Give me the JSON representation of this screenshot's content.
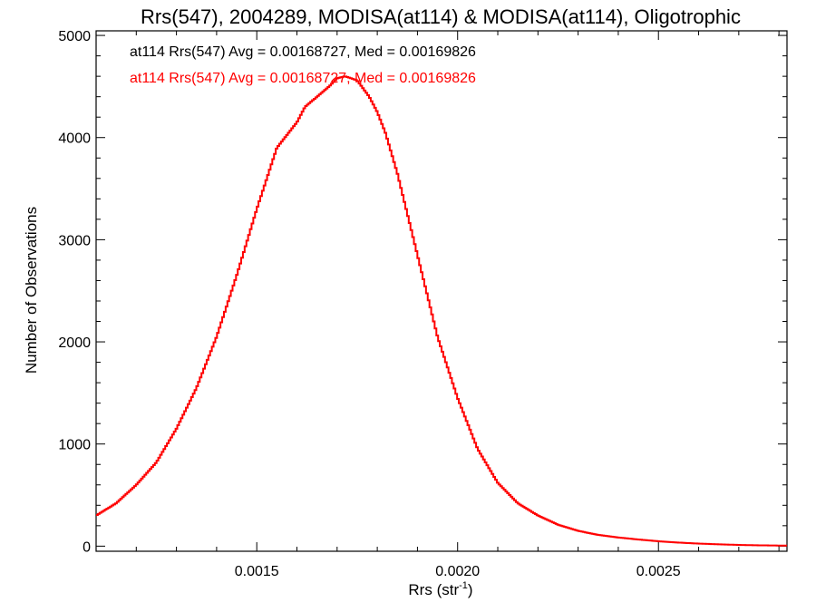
{
  "chart_data": {
    "type": "histogram",
    "title": "Rrs(547), 2004289, MODISA(at114) & MODISA(at114), Oligotrophic",
    "xlabel": "Rrs (str",
    "xlabel_sup": "-1",
    "xlabel_end": ")",
    "ylabel": "Number of Observations",
    "xlim": [
      0.0011,
      0.00282
    ],
    "ylim": [
      0,
      5000
    ],
    "x_ticks": [
      0.0015,
      0.002,
      0.0025
    ],
    "x_tick_labels": [
      "0.0015",
      "0.0020",
      "0.0025"
    ],
    "y_ticks": [
      0,
      1000,
      2000,
      3000,
      4000,
      5000
    ],
    "y_tick_labels": [
      "0",
      "1000",
      "2000",
      "3000",
      "4000",
      "5000"
    ],
    "annotations": [
      {
        "text": "at114 Rrs(547) Avg = 0.00168727, Med = 0.00169826",
        "color": "#000000"
      },
      {
        "text": "at114 Rrs(547) Avg = 0.00168727, Med = 0.00169826",
        "color": "#ff0000"
      }
    ],
    "series": [
      {
        "color": "#ff0000",
        "x": [
          0.0011,
          0.00115,
          0.0012,
          0.00125,
          0.0013,
          0.00135,
          0.0014,
          0.00145,
          0.0015,
          0.00155,
          0.0016,
          0.00162,
          0.00165,
          0.00168,
          0.0017,
          0.00172,
          0.00175,
          0.00178,
          0.0018,
          0.00182,
          0.00185,
          0.0019,
          0.00195,
          0.002,
          0.00205,
          0.0021,
          0.00215,
          0.0022,
          0.00225,
          0.0023,
          0.00235,
          0.0024,
          0.00245,
          0.0025,
          0.00255,
          0.0026,
          0.00265,
          0.0027,
          0.00275,
          0.00282
        ],
        "values": [
          300,
          420,
          600,
          820,
          1150,
          1550,
          2050,
          2650,
          3300,
          3900,
          4150,
          4300,
          4400,
          4500,
          4580,
          4600,
          4560,
          4400,
          4250,
          4050,
          3650,
          2850,
          2050,
          1450,
          950,
          620,
          420,
          300,
          210,
          150,
          110,
          85,
          65,
          48,
          35,
          25,
          18,
          12,
          8,
          5
        ]
      }
    ]
  }
}
